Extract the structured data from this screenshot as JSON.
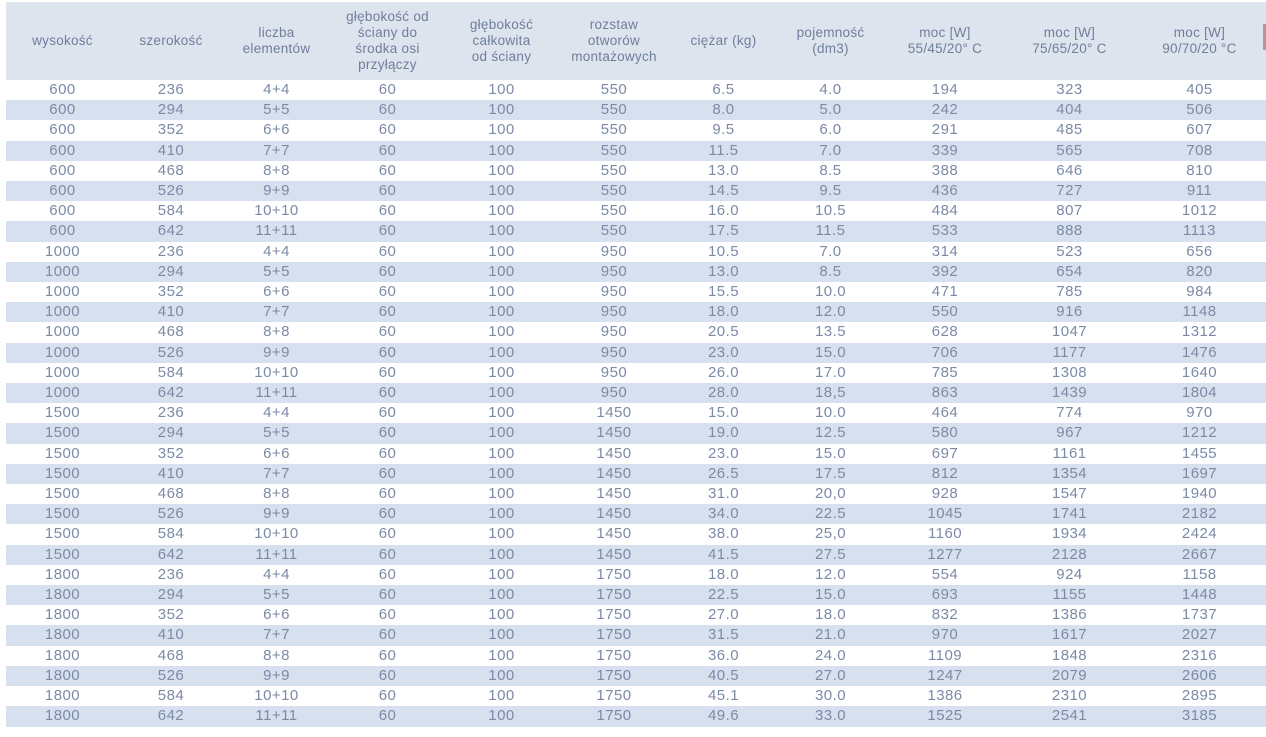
{
  "colors": {
    "header_bg": "#dde4ee",
    "stripe_bg": "#d7e0ee",
    "header_text": "#6f7e9b",
    "cell_text": "#7c8aa6",
    "edge_artifact": "#b5949b"
  },
  "table": {
    "columns": [
      {
        "id": "wysokosc",
        "label": "wysokość"
      },
      {
        "id": "szerokosc",
        "label": "szerokość"
      },
      {
        "id": "liczba-elementow",
        "label": "liczba\nelementów"
      },
      {
        "id": "glebokosc-od-sciany",
        "label": "głębokość od\nściany do\nśrodka osi\nprzyłączy"
      },
      {
        "id": "glebokosc-calkowita",
        "label": "głębokość\ncałkowita\nod ściany"
      },
      {
        "id": "rozstaw-otworow",
        "label": "rozstaw\notworów\nmontażowych"
      },
      {
        "id": "ciezar",
        "label": "ciężar (kg)"
      },
      {
        "id": "pojemnosc",
        "label": "pojemność\n(dm3)"
      },
      {
        "id": "moc-55-45-20",
        "label": "moc [W]\n55/45/20° C"
      },
      {
        "id": "moc-75-65-20",
        "label": "moc [W]\n75/65/20° C"
      },
      {
        "id": "moc-90-70-20",
        "label": "moc [W]\n90/70/20 °C"
      }
    ],
    "rows": [
      [
        "600",
        "236",
        "4+4",
        "60",
        "100",
        "550",
        "6.5",
        "4.0",
        "194",
        "323",
        "405"
      ],
      [
        "600",
        "294",
        "5+5",
        "60",
        "100",
        "550",
        "8.0",
        "5.0",
        "242",
        "404",
        "506"
      ],
      [
        "600",
        "352",
        "6+6",
        "60",
        "100",
        "550",
        "9.5",
        "6.0",
        "291",
        "485",
        "607"
      ],
      [
        "600",
        "410",
        "7+7",
        "60",
        "100",
        "550",
        "11.5",
        "7.0",
        "339",
        "565",
        "708"
      ],
      [
        "600",
        "468",
        "8+8",
        "60",
        "100",
        "550",
        "13.0",
        "8.5",
        "388",
        "646",
        "810"
      ],
      [
        "600",
        "526",
        "9+9",
        "60",
        "100",
        "550",
        "14.5",
        "9.5",
        "436",
        "727",
        "911"
      ],
      [
        "600",
        "584",
        "10+10",
        "60",
        "100",
        "550",
        "16.0",
        "10.5",
        "484",
        "807",
        "1012"
      ],
      [
        "600",
        "642",
        "11+11",
        "60",
        "100",
        "550",
        "17.5",
        "11.5",
        "533",
        "888",
        "1113"
      ],
      [
        "1000",
        "236",
        "4+4",
        "60",
        "100",
        "950",
        "10.5",
        "7.0",
        "314",
        "523",
        "656"
      ],
      [
        "1000",
        "294",
        "5+5",
        "60",
        "100",
        "950",
        "13.0",
        "8.5",
        "392",
        "654",
        "820"
      ],
      [
        "1000",
        "352",
        "6+6",
        "60",
        "100",
        "950",
        "15.5",
        "10.0",
        "471",
        "785",
        "984"
      ],
      [
        "1000",
        "410",
        "7+7",
        "60",
        "100",
        "950",
        "18.0",
        "12.0",
        "550",
        "916",
        "1148"
      ],
      [
        "1000",
        "468",
        "8+8",
        "60",
        "100",
        "950",
        "20.5",
        "13.5",
        "628",
        "1047",
        "1312"
      ],
      [
        "1000",
        "526",
        "9+9",
        "60",
        "100",
        "950",
        "23.0",
        "15.0",
        "706",
        "1177",
        "1476"
      ],
      [
        "1000",
        "584",
        "10+10",
        "60",
        "100",
        "950",
        "26.0",
        "17.0",
        "785",
        "1308",
        "1640"
      ],
      [
        "1000",
        "642",
        "11+11",
        "60",
        "100",
        "950",
        "28.0",
        "18,5",
        "863",
        "1439",
        "1804"
      ],
      [
        "1500",
        "236",
        "4+4",
        "60",
        "100",
        "1450",
        "15.0",
        "10.0",
        "464",
        "774",
        "970"
      ],
      [
        "1500",
        "294",
        "5+5",
        "60",
        "100",
        "1450",
        "19.0",
        "12.5",
        "580",
        "967",
        "1212"
      ],
      [
        "1500",
        "352",
        "6+6",
        "60",
        "100",
        "1450",
        "23.0",
        "15.0",
        "697",
        "1161",
        "1455"
      ],
      [
        "1500",
        "410",
        "7+7",
        "60",
        "100",
        "1450",
        "26.5",
        "17.5",
        "812",
        "1354",
        "1697"
      ],
      [
        "1500",
        "468",
        "8+8",
        "60",
        "100",
        "1450",
        "31.0",
        "20,0",
        "928",
        "1547",
        "1940"
      ],
      [
        "1500",
        "526",
        "9+9",
        "60",
        "100",
        "1450",
        "34.0",
        "22.5",
        "1045",
        "1741",
        "2182"
      ],
      [
        "1500",
        "584",
        "10+10",
        "60",
        "100",
        "1450",
        "38.0",
        "25,0",
        "1160",
        "1934",
        "2424"
      ],
      [
        "1500",
        "642",
        "11+11",
        "60",
        "100",
        "1450",
        "41.5",
        "27.5",
        "1277",
        "2128",
        "2667"
      ],
      [
        "1800",
        "236",
        "4+4",
        "60",
        "100",
        "1750",
        "18.0",
        "12.0",
        "554",
        "924",
        "1158"
      ],
      [
        "1800",
        "294",
        "5+5",
        "60",
        "100",
        "1750",
        "22.5",
        "15.0",
        "693",
        "1155",
        "1448"
      ],
      [
        "1800",
        "352",
        "6+6",
        "60",
        "100",
        "1750",
        "27.0",
        "18.0",
        "832",
        "1386",
        "1737"
      ],
      [
        "1800",
        "410",
        "7+7",
        "60",
        "100",
        "1750",
        "31.5",
        "21.0",
        "970",
        "1617",
        "2027"
      ],
      [
        "1800",
        "468",
        "8+8",
        "60",
        "100",
        "1750",
        "36.0",
        "24.0",
        "1109",
        "1848",
        "2316"
      ],
      [
        "1800",
        "526",
        "9+9",
        "60",
        "100",
        "1750",
        "40.5",
        "27.0",
        "1247",
        "2079",
        "2606"
      ],
      [
        "1800",
        "584",
        "10+10",
        "60",
        "100",
        "1750",
        "45.1",
        "30.0",
        "1386",
        "2310",
        "2895"
      ],
      [
        "1800",
        "642",
        "11+11",
        "60",
        "100",
        "1750",
        "49.6",
        "33.0",
        "1525",
        "2541",
        "3185"
      ]
    ]
  }
}
